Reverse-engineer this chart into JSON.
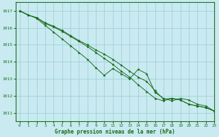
{
  "title": "Graphe pression niveau de la mer (hPa)",
  "background_color": "#c8eaf0",
  "grid_color": "#a0d0d8",
  "line_color": "#1a6b1a",
  "marker_color": "#1a6b1a",
  "xlim": [
    -0.5,
    23
  ],
  "ylim": [
    1010.5,
    1017.5
  ],
  "yticks": [
    1011,
    1012,
    1013,
    1014,
    1015,
    1016,
    1017
  ],
  "xticks": [
    0,
    1,
    2,
    3,
    4,
    5,
    6,
    7,
    8,
    9,
    10,
    11,
    12,
    13,
    14,
    15,
    16,
    17,
    18,
    19,
    20,
    21,
    22,
    23
  ],
  "series1_x": [
    0,
    1,
    2,
    3,
    4,
    5,
    6,
    7,
    8,
    9,
    10,
    11,
    12,
    13,
    14,
    15,
    16,
    17,
    18,
    19,
    20,
    21,
    22,
    23
  ],
  "series1_y": [
    1017.0,
    1016.75,
    1016.6,
    1016.3,
    1016.1,
    1015.85,
    1015.55,
    1015.25,
    1015.0,
    1014.7,
    1014.45,
    1014.15,
    1013.8,
    1013.45,
    1013.1,
    1012.85,
    1012.3,
    1011.8,
    1011.85,
    1011.75,
    1011.5,
    1011.4,
    1011.3,
    1011.1
  ],
  "series2_x": [
    0,
    1,
    2,
    3,
    4,
    5,
    6,
    7,
    8,
    9,
    10,
    11,
    12,
    13,
    14,
    15,
    16,
    17,
    18,
    19,
    20,
    21,
    22,
    23
  ],
  "series2_y": [
    1017.0,
    1016.75,
    1016.6,
    1016.25,
    1016.05,
    1015.8,
    1015.5,
    1015.2,
    1014.9,
    1014.55,
    1014.2,
    1013.85,
    1013.45,
    1013.1,
    1012.65,
    1012.25,
    1011.85,
    1011.7,
    1011.85,
    1011.75,
    1011.5,
    1011.4,
    1011.3,
    1011.1
  ],
  "series3_x": [
    0,
    2,
    3,
    4,
    5,
    6,
    7,
    8,
    9,
    10,
    11,
    12,
    13,
    14,
    15,
    16,
    17,
    18,
    19,
    20,
    21,
    22,
    23
  ],
  "series3_y": [
    1017.0,
    1016.55,
    1016.15,
    1015.75,
    1015.35,
    1014.95,
    1014.55,
    1014.15,
    1013.65,
    1013.2,
    1013.6,
    1013.3,
    1013.0,
    1013.55,
    1013.3,
    1012.2,
    1011.85,
    1011.7,
    1011.85,
    1011.75,
    1011.5,
    1011.4,
    1011.1
  ]
}
